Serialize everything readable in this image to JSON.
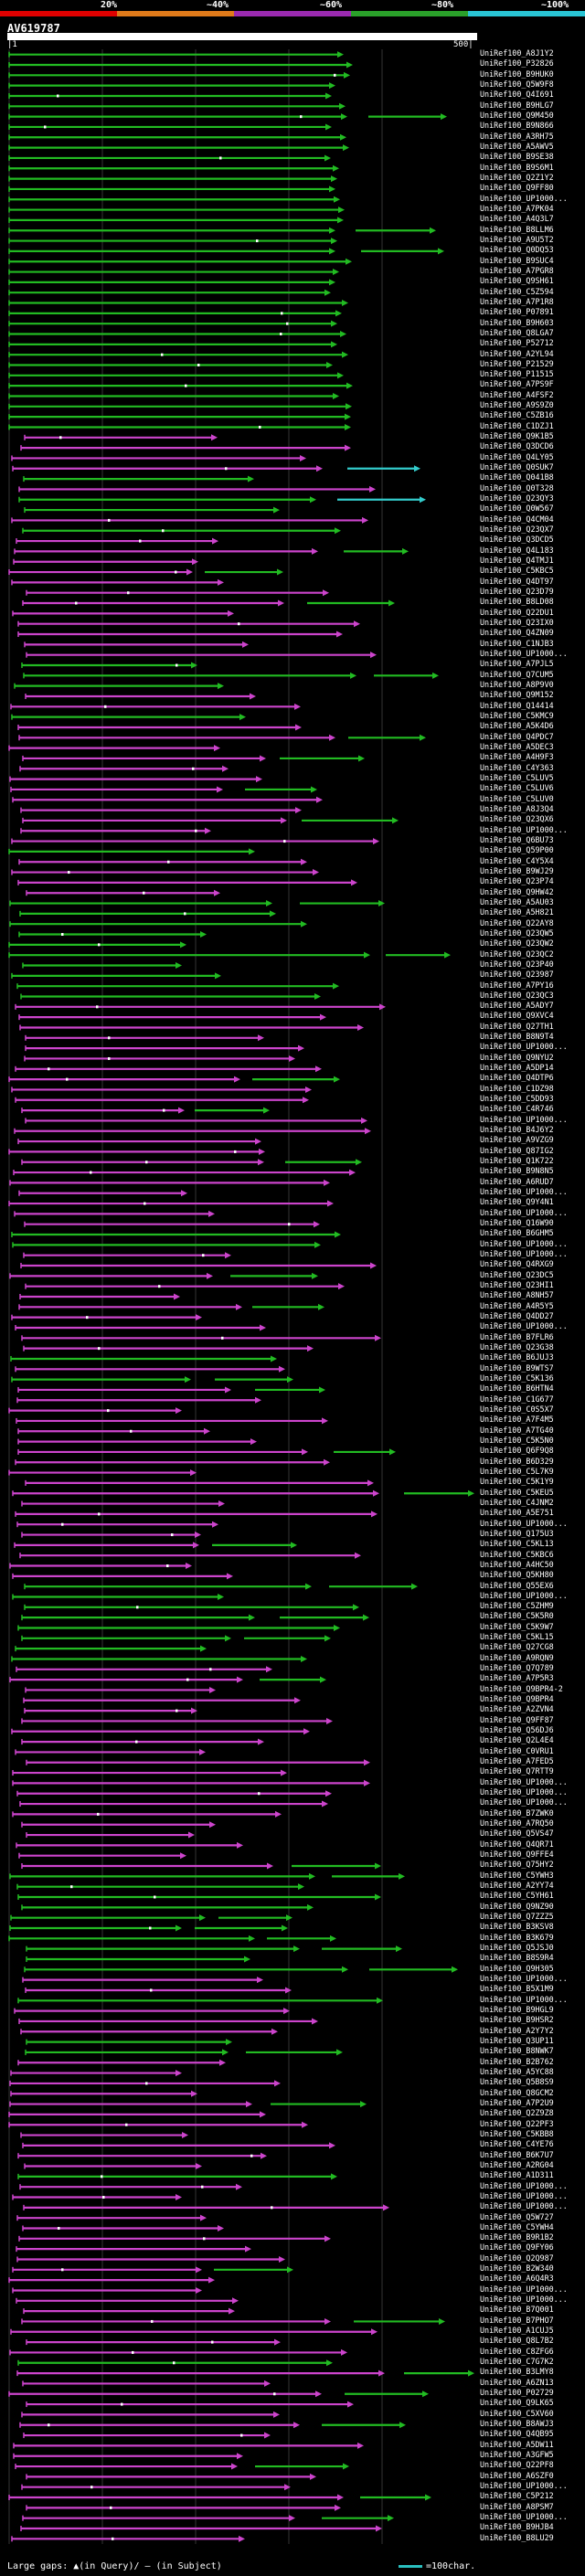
{
  "legend": {
    "ticks": [
      "20%",
      "~40%",
      "~60%",
      "~80%",
      "~100%"
    ],
    "colors": [
      "#e00000",
      "#e07a1a",
      "#9a2ab0",
      "#2aa02a",
      "#29c4d4"
    ]
  },
  "query": {
    "title": "AV619787",
    "start": "|1",
    "end": "500|"
  },
  "colors": {
    "magenta": "#cc44cc",
    "green": "#22bb22",
    "cyan": "#33cccc",
    "grid": "#333333",
    "gap": "#ffffff"
  },
  "hits": [
    "UniRef100_A8J1Y2",
    "UniRef100_P32826",
    "UniRef100_B9HUK0",
    "UniRef100_Q5W9F8",
    "UniRef100_Q4I691",
    "UniRef100_B9HLG7",
    "UniRef100_Q9M450",
    "UniRef100_B9N866",
    "UniRef100_A3RH75",
    "UniRef100_A5AWV5",
    "UniRef100_B9SE38",
    "UniRef100_B9S6M1",
    "UniRef100_Q2Z1Y2",
    "UniRef100_Q9FF80",
    "UniRef100_UP1000...",
    "UniRef100_A7PK04",
    "UniRef100_A4Q3L7",
    "UniRef100_B8LLM6",
    "UniRef100_A9U5T2",
    "UniRef100_Q0DQ53",
    "UniRef100_B9SUC4",
    "UniRef100_A7PGR8",
    "UniRef100_Q9SH61",
    "UniRef100_C5Z594",
    "UniRef100_A7P1R8",
    "UniRef100_P07891",
    "UniRef100_B9H603",
    "UniRef100_Q8LGA7",
    "UniRef100_P52712",
    "UniRef100_A2YL94",
    "UniRef100_P21529",
    "UniRef100_P11515",
    "UniRef100_A7PS9F",
    "UniRef100_A4FSF2",
    "UniRef100_A9S9Z0",
    "UniRef100_C5ZB16",
    "UniRef100_C1DZJ1",
    "UniRef100_Q9K1B5",
    "UniRef100_Q3DCD6",
    "UniRef100_Q4LY05",
    "UniRef100_Q0SUK7",
    "UniRef100_Q041B8",
    "UniRef100_Q0T328",
    "UniRef100_Q23QY3",
    "UniRef100_Q0W567",
    "UniRef100_Q4CM04",
    "UniRef100_Q23QX7",
    "UniRef100_Q3DCD5",
    "UniRef100_Q4L183",
    "UniRef100_Q4TMJ1",
    "UniRef100_C5KBC5",
    "UniRef100_Q4DT97",
    "UniRef100_Q23D79",
    "UniRef100_B8LD08",
    "UniRef100_Q22DU1",
    "UniRef100_Q23IX0",
    "UniRef100_Q4ZN09",
    "UniRef100_C1NJB3",
    "UniRef100_UP1000...",
    "UniRef100_A7PJL5",
    "UniRef100_Q7CUM5",
    "UniRef100_A8P9V0",
    "UniRef100_Q9M152",
    "UniRef100_Q14414",
    "UniRef100_C5KMC9",
    "UniRef100_A5K4D6",
    "UniRef100_Q4PDC7",
    "UniRef100_A5DEC3",
    "UniRef100_A4H9F3",
    "UniRef100_C4Y363",
    "UniRef100_C5LUV5",
    "UniRef100_C5LUV6",
    "UniRef100_C5LUV0",
    "UniRef100_A8J3Q4",
    "UniRef100_Q23QX6",
    "UniRef100_UP1000...",
    "UniRef100_Q6BU73",
    "UniRef100_Q59P00",
    "UniRef100_C4Y5X4",
    "UniRef100_B9WJ29",
    "UniRef100_Q23P74",
    "UniRef100_Q9HW42",
    "UniRef100_A5AU03",
    "UniRef100_A5H821",
    "UniRef100_Q22AY8",
    "UniRef100_Q23QW5",
    "UniRef100_Q23QW2",
    "UniRef100_Q23QC2",
    "UniRef100_Q23P40",
    "UniRef100_Q23987",
    "UniRef100_A7PY16",
    "UniRef100_Q23QC3",
    "UniRef100_A5ADY7",
    "UniRef100_Q9XVC4",
    "UniRef100_Q27TH1",
    "UniRef100_B8N9T4",
    "UniRef100_UP1000...",
    "UniRef100_Q9NYU2",
    "UniRef100_A5DP14",
    "UniRef100_Q4DTP6",
    "UniRef100_C1DZ98",
    "UniRef100_C5DD93",
    "UniRef100_C4R746",
    "UniRef100_UP1000...",
    "UniRef100_B4J6Y2",
    "UniRef100_A9VZG9",
    "UniRef100_Q87IG2",
    "UniRef100_Q1K722",
    "UniRef100_B9N8N5",
    "UniRef100_A6RUD7",
    "UniRef100_UP1000...",
    "UniRef100_Q9Y4N1",
    "UniRef100_UP1000...",
    "UniRef100_Q16W90",
    "UniRef100_B6GHM5",
    "UniRef100_UP1000...",
    "UniRef100_UP1000...",
    "UniRef100_Q4RXG9",
    "UniRef100_Q23DC5",
    "UniRef100_Q23HI1",
    "UniRef100_A8NH57",
    "UniRef100_A4R5Y5",
    "UniRef100_Q4DD27",
    "UniRef100_UP1000...",
    "UniRef100_B7FLR6",
    "UniRef100_Q23G38",
    "UniRef100_B6JUJ3",
    "UniRef100_B9WTS7",
    "UniRef100_C5K136",
    "UniRef100_B6HTN4",
    "UniRef100_C1G677",
    "UniRef100_C0S5X7",
    "UniRef100_A7F4M5",
    "UniRef100_A7TG40",
    "UniRef100_C5K5N0",
    "UniRef100_Q6F9Q8",
    "UniRef100_B6D329",
    "UniRef100_C5L7K9",
    "UniRef100_C5K1Y9",
    "UniRef100_C5KEU5",
    "UniRef100_C4JNM2",
    "UniRef100_A5E751",
    "UniRef100_UP1000...",
    "UniRef100_Q175U3",
    "UniRef100_C5KL13",
    "UniRef100_C5KBC6",
    "UniRef100_A4HC50",
    "UniRef100_Q5KH80",
    "UniRef100_Q55EX6",
    "UniRef100_UP1000...",
    "UniRef100_C5ZHM9",
    "UniRef100_C5K5R0",
    "UniRef100_C5K9W7",
    "UniRef100_C5KL15",
    "UniRef100_Q27CG8",
    "UniRef100_A9RQN9",
    "UniRef100_Q7Q789",
    "UniRef100_A7P5R3",
    "UniRef100_Q9BPR4-2",
    "UniRef100_Q9BPR4",
    "UniRef100_A2ZVN4",
    "UniRef100_Q9FF87",
    "UniRef100_Q56DJ6",
    "UniRef100_Q2L4E4",
    "UniRef100_C0VRU1",
    "UniRef100_A7FED5",
    "UniRef100_Q7RTT9",
    "UniRef100_UP1000...",
    "UniRef100_UP1000...",
    "UniRef100_UP1000...",
    "UniRef100_B7ZWK0",
    "UniRef100_A7RQ50",
    "UniRef100_Q5VS47",
    "UniRef100_Q4QR71",
    "UniRef100_Q9FFE4",
    "UniRef100_Q75HY2",
    "UniRef100_C5YWH3",
    "UniRef100_A2YY74",
    "UniRef100_C5YH61",
    "UniRef100_Q9NZ90",
    "UniRef100_Q7ZZZ5",
    "UniRef100_B3KSV8",
    "UniRef100_B3K679",
    "UniRef100_Q5JSJ0",
    "UniRef100_B8S9R4",
    "UniRef100_Q9H305",
    "UniRef100_UP1000...",
    "UniRef100_B5X1M9",
    "UniRef100_UP1000...",
    "UniRef100_B9HGL9",
    "UniRef100_B9HSR2",
    "UniRef100_A2Y7Y2",
    "UniRef100_Q3UP11",
    "UniRef100_B8NWK7",
    "UniRef100_B2B762",
    "UniRef100_A5YC88",
    "UniRef100_Q5B8S9",
    "UniRef100_Q8GCM2",
    "UniRef100_A7P2U9",
    "UniRef100_Q2Z9Z8",
    "UniRef100_Q22PF3",
    "UniRef100_C5KBB8",
    "UniRef100_C4YE76",
    "UniRef100_B6K7U7",
    "UniRef100_A2RG04",
    "UniRef100_A1D311",
    "UniRef100_UP1000...",
    "UniRef100_UP1000...",
    "UniRef100_UP1000...",
    "UniRef100_Q5W727",
    "UniRef100_C5YWH4",
    "UniRef100_B9R1B2",
    "UniRef100_Q9FY06",
    "UniRef100_Q2Q987",
    "UniRef100_B2W340",
    "UniRef100_A6Q4R3",
    "UniRef100_UP1000...",
    "UniRef100_UP1000...",
    "UniRef100_B7Q001",
    "UniRef100_B7PHO7",
    "UniRef100_A1CUJ5",
    "UniRef100_Q8L7B2",
    "UniRef100_C8ZFG6",
    "UniRef100_C7G7K2",
    "UniRef100_B3LMY8",
    "UniRef100_A6ZN13",
    "UniRef100_P02729",
    "UniRef100_Q9LK65",
    "UniRef100_C5XV60",
    "UniRef100_B8AWJ3",
    "UniRef100_Q4QB95",
    "UniRef100_A5DW11",
    "UniRef100_A3GFW5",
    "UniRef100_Q22PF8",
    "UniRef100_A6SZF0",
    "UniRef100_UP1000...",
    "UniRef100_C5P212",
    "UniRef100_A8PSM7",
    "UniRef100_UP1000...",
    "UniRef100_B9HJB4",
    "UniRef100_B8LU29"
  ],
  "footer": {
    "large_gaps": "Large gaps: ▲(in Query)/ — (in Subject)",
    "scale": "=100char."
  }
}
